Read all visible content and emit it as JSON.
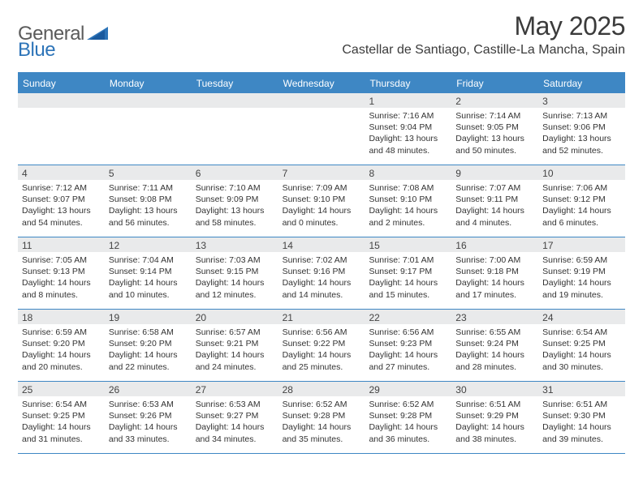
{
  "brand": {
    "part1": "General",
    "part2": "Blue"
  },
  "title": "May 2025",
  "location": "Castellar de Santiago, Castille-La Mancha, Spain",
  "colors": {
    "header_bar": "#3e87c4",
    "day_head_bg": "#e9eaeb",
    "text": "#333333",
    "title_text": "#3b3b3b",
    "logo_gray": "#5b5b5b",
    "logo_blue": "#2d74b8"
  },
  "typography": {
    "title_fontsize": 32,
    "location_fontsize": 16,
    "weekday_fontsize": 12,
    "daynum_fontsize": 12,
    "body_fontsize": 10.5
  },
  "weekdays": [
    "Sunday",
    "Monday",
    "Tuesday",
    "Wednesday",
    "Thursday",
    "Friday",
    "Saturday"
  ],
  "weeks": [
    [
      {
        "num": "",
        "sunrise": "",
        "sunset": "",
        "daylight": ""
      },
      {
        "num": "",
        "sunrise": "",
        "sunset": "",
        "daylight": ""
      },
      {
        "num": "",
        "sunrise": "",
        "sunset": "",
        "daylight": ""
      },
      {
        "num": "",
        "sunrise": "",
        "sunset": "",
        "daylight": ""
      },
      {
        "num": "1",
        "sunrise": "Sunrise: 7:16 AM",
        "sunset": "Sunset: 9:04 PM",
        "daylight": "Daylight: 13 hours and 48 minutes."
      },
      {
        "num": "2",
        "sunrise": "Sunrise: 7:14 AM",
        "sunset": "Sunset: 9:05 PM",
        "daylight": "Daylight: 13 hours and 50 minutes."
      },
      {
        "num": "3",
        "sunrise": "Sunrise: 7:13 AM",
        "sunset": "Sunset: 9:06 PM",
        "daylight": "Daylight: 13 hours and 52 minutes."
      }
    ],
    [
      {
        "num": "4",
        "sunrise": "Sunrise: 7:12 AM",
        "sunset": "Sunset: 9:07 PM",
        "daylight": "Daylight: 13 hours and 54 minutes."
      },
      {
        "num": "5",
        "sunrise": "Sunrise: 7:11 AM",
        "sunset": "Sunset: 9:08 PM",
        "daylight": "Daylight: 13 hours and 56 minutes."
      },
      {
        "num": "6",
        "sunrise": "Sunrise: 7:10 AM",
        "sunset": "Sunset: 9:09 PM",
        "daylight": "Daylight: 13 hours and 58 minutes."
      },
      {
        "num": "7",
        "sunrise": "Sunrise: 7:09 AM",
        "sunset": "Sunset: 9:10 PM",
        "daylight": "Daylight: 14 hours and 0 minutes."
      },
      {
        "num": "8",
        "sunrise": "Sunrise: 7:08 AM",
        "sunset": "Sunset: 9:10 PM",
        "daylight": "Daylight: 14 hours and 2 minutes."
      },
      {
        "num": "9",
        "sunrise": "Sunrise: 7:07 AM",
        "sunset": "Sunset: 9:11 PM",
        "daylight": "Daylight: 14 hours and 4 minutes."
      },
      {
        "num": "10",
        "sunrise": "Sunrise: 7:06 AM",
        "sunset": "Sunset: 9:12 PM",
        "daylight": "Daylight: 14 hours and 6 minutes."
      }
    ],
    [
      {
        "num": "11",
        "sunrise": "Sunrise: 7:05 AM",
        "sunset": "Sunset: 9:13 PM",
        "daylight": "Daylight: 14 hours and 8 minutes."
      },
      {
        "num": "12",
        "sunrise": "Sunrise: 7:04 AM",
        "sunset": "Sunset: 9:14 PM",
        "daylight": "Daylight: 14 hours and 10 minutes."
      },
      {
        "num": "13",
        "sunrise": "Sunrise: 7:03 AM",
        "sunset": "Sunset: 9:15 PM",
        "daylight": "Daylight: 14 hours and 12 minutes."
      },
      {
        "num": "14",
        "sunrise": "Sunrise: 7:02 AM",
        "sunset": "Sunset: 9:16 PM",
        "daylight": "Daylight: 14 hours and 14 minutes."
      },
      {
        "num": "15",
        "sunrise": "Sunrise: 7:01 AM",
        "sunset": "Sunset: 9:17 PM",
        "daylight": "Daylight: 14 hours and 15 minutes."
      },
      {
        "num": "16",
        "sunrise": "Sunrise: 7:00 AM",
        "sunset": "Sunset: 9:18 PM",
        "daylight": "Daylight: 14 hours and 17 minutes."
      },
      {
        "num": "17",
        "sunrise": "Sunrise: 6:59 AM",
        "sunset": "Sunset: 9:19 PM",
        "daylight": "Daylight: 14 hours and 19 minutes."
      }
    ],
    [
      {
        "num": "18",
        "sunrise": "Sunrise: 6:59 AM",
        "sunset": "Sunset: 9:20 PM",
        "daylight": "Daylight: 14 hours and 20 minutes."
      },
      {
        "num": "19",
        "sunrise": "Sunrise: 6:58 AM",
        "sunset": "Sunset: 9:20 PM",
        "daylight": "Daylight: 14 hours and 22 minutes."
      },
      {
        "num": "20",
        "sunrise": "Sunrise: 6:57 AM",
        "sunset": "Sunset: 9:21 PM",
        "daylight": "Daylight: 14 hours and 24 minutes."
      },
      {
        "num": "21",
        "sunrise": "Sunrise: 6:56 AM",
        "sunset": "Sunset: 9:22 PM",
        "daylight": "Daylight: 14 hours and 25 minutes."
      },
      {
        "num": "22",
        "sunrise": "Sunrise: 6:56 AM",
        "sunset": "Sunset: 9:23 PM",
        "daylight": "Daylight: 14 hours and 27 minutes."
      },
      {
        "num": "23",
        "sunrise": "Sunrise: 6:55 AM",
        "sunset": "Sunset: 9:24 PM",
        "daylight": "Daylight: 14 hours and 28 minutes."
      },
      {
        "num": "24",
        "sunrise": "Sunrise: 6:54 AM",
        "sunset": "Sunset: 9:25 PM",
        "daylight": "Daylight: 14 hours and 30 minutes."
      }
    ],
    [
      {
        "num": "25",
        "sunrise": "Sunrise: 6:54 AM",
        "sunset": "Sunset: 9:25 PM",
        "daylight": "Daylight: 14 hours and 31 minutes."
      },
      {
        "num": "26",
        "sunrise": "Sunrise: 6:53 AM",
        "sunset": "Sunset: 9:26 PM",
        "daylight": "Daylight: 14 hours and 33 minutes."
      },
      {
        "num": "27",
        "sunrise": "Sunrise: 6:53 AM",
        "sunset": "Sunset: 9:27 PM",
        "daylight": "Daylight: 14 hours and 34 minutes."
      },
      {
        "num": "28",
        "sunrise": "Sunrise: 6:52 AM",
        "sunset": "Sunset: 9:28 PM",
        "daylight": "Daylight: 14 hours and 35 minutes."
      },
      {
        "num": "29",
        "sunrise": "Sunrise: 6:52 AM",
        "sunset": "Sunset: 9:28 PM",
        "daylight": "Daylight: 14 hours and 36 minutes."
      },
      {
        "num": "30",
        "sunrise": "Sunrise: 6:51 AM",
        "sunset": "Sunset: 9:29 PM",
        "daylight": "Daylight: 14 hours and 38 minutes."
      },
      {
        "num": "31",
        "sunrise": "Sunrise: 6:51 AM",
        "sunset": "Sunset: 9:30 PM",
        "daylight": "Daylight: 14 hours and 39 minutes."
      }
    ]
  ]
}
